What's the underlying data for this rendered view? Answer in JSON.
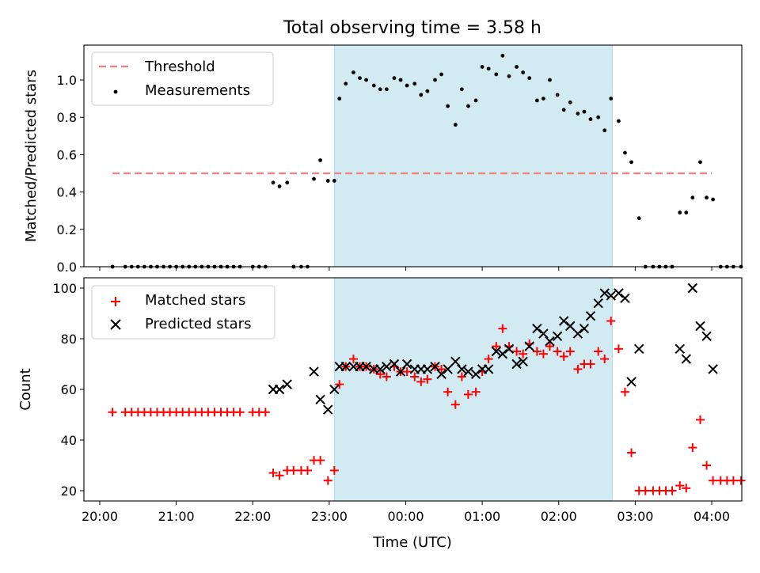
{
  "figure": {
    "title": "Total observing time = 3.58 h",
    "xlabel": "Time (UTC)"
  },
  "chart_data": [
    {
      "type": "scatter",
      "ylabel": "Matched/Predicted stars",
      "xlim": [
        "20:00",
        "04:00"
      ],
      "ylim": [
        0,
        1.15
      ],
      "x_ticks": [
        "20:00",
        "21:00",
        "22:00",
        "23:00",
        "00:00",
        "01:00",
        "02:00",
        "03:00",
        "04:00"
      ],
      "y_ticks": [
        "0.0",
        "0.2",
        "0.4",
        "0.6",
        "0.8",
        "1.0"
      ],
      "grid": false,
      "legend_position": "top-left",
      "highlight_span": {
        "start": "23:04",
        "end": "02:42",
        "color": "#add8e6"
      },
      "threshold": {
        "name": "Threshold",
        "value": 0.5,
        "x_start": "20:10",
        "x_end": "04:00",
        "color": "#f08080"
      },
      "series": [
        {
          "name": "Measurements",
          "color": "#000000",
          "points": [
            [
              "20:10",
              0
            ],
            [
              "20:20",
              0
            ],
            [
              "20:25",
              0
            ],
            [
              "20:30",
              0
            ],
            [
              "20:35",
              0
            ],
            [
              "20:40",
              0
            ],
            [
              "20:45",
              0
            ],
            [
              "20:50",
              0
            ],
            [
              "20:55",
              0
            ],
            [
              "21:00",
              0
            ],
            [
              "21:05",
              0
            ],
            [
              "21:10",
              0
            ],
            [
              "21:15",
              0
            ],
            [
              "21:20",
              0
            ],
            [
              "21:25",
              0
            ],
            [
              "21:30",
              0
            ],
            [
              "21:35",
              0
            ],
            [
              "21:40",
              0
            ],
            [
              "21:45",
              0
            ],
            [
              "21:50",
              0
            ],
            [
              "22:00",
              0
            ],
            [
              "22:05",
              0
            ],
            [
              "22:10",
              0
            ],
            [
              "22:16",
              0.45
            ],
            [
              "22:21",
              0.43
            ],
            [
              "22:27",
              0.45
            ],
            [
              "22:32",
              0
            ],
            [
              "22:38",
              0
            ],
            [
              "22:43",
              0
            ],
            [
              "22:48",
              0.47
            ],
            [
              "22:53",
              0.57
            ],
            [
              "22:59",
              0.46
            ],
            [
              "23:04",
              0.46
            ],
            [
              "23:08",
              0.9
            ],
            [
              "23:13",
              0.98
            ],
            [
              "23:19",
              1.04
            ],
            [
              "23:24",
              1.01
            ],
            [
              "23:29",
              1.0
            ],
            [
              "23:35",
              0.97
            ],
            [
              "23:40",
              0.95
            ],
            [
              "23:45",
              0.95
            ],
            [
              "23:51",
              1.01
            ],
            [
              "23:56",
              1.0
            ],
            [
              "00:01",
              0.97
            ],
            [
              "00:07",
              0.98
            ],
            [
              "00:12",
              0.92
            ],
            [
              "00:17",
              0.94
            ],
            [
              "00:23",
              1.0
            ],
            [
              "00:28",
              1.03
            ],
            [
              "00:33",
              0.86
            ],
            [
              "00:39",
              0.76
            ],
            [
              "00:44",
              0.95
            ],
            [
              "00:49",
              0.86
            ],
            [
              "00:55",
              0.89
            ],
            [
              "01:00",
              1.07
            ],
            [
              "01:05",
              1.06
            ],
            [
              "01:11",
              1.03
            ],
            [
              "01:16",
              1.13
            ],
            [
              "01:21",
              1.02
            ],
            [
              "01:27",
              1.07
            ],
            [
              "01:32",
              1.04
            ],
            [
              "01:37",
              1.01
            ],
            [
              "01:43",
              0.89
            ],
            [
              "01:48",
              0.9
            ],
            [
              "01:53",
              1.0
            ],
            [
              "01:59",
              0.92
            ],
            [
              "02:04",
              0.84
            ],
            [
              "02:09",
              0.88
            ],
            [
              "02:15",
              0.82
            ],
            [
              "02:20",
              0.83
            ],
            [
              "02:25",
              0.79
            ],
            [
              "02:31",
              0.8
            ],
            [
              "02:36",
              0.73
            ],
            [
              "02:41",
              0.9
            ],
            [
              "02:47",
              0.78
            ],
            [
              "02:52",
              0.61
            ],
            [
              "02:57",
              0.56
            ],
            [
              "03:03",
              0.26
            ],
            [
              "03:08",
              0
            ],
            [
              "03:14",
              0
            ],
            [
              "03:19",
              0
            ],
            [
              "03:24",
              0
            ],
            [
              "03:29",
              0
            ],
            [
              "03:35",
              0.29
            ],
            [
              "03:40",
              0.29
            ],
            [
              "03:45",
              0.37
            ],
            [
              "03:51",
              0.56
            ],
            [
              "03:56",
              0.37
            ],
            [
              "04:01",
              0.36
            ],
            [
              "04:07",
              0
            ],
            [
              "04:12",
              0
            ],
            [
              "04:17",
              0
            ],
            [
              "04:23",
              0
            ]
          ]
        }
      ]
    },
    {
      "type": "scatter",
      "ylabel": "Count",
      "xlim": [
        "20:00",
        "04:00"
      ],
      "ylim": [
        15,
        104
      ],
      "x_ticks": [
        "20:00",
        "21:00",
        "22:00",
        "23:00",
        "00:00",
        "01:00",
        "02:00",
        "03:00",
        "04:00"
      ],
      "y_ticks": [
        "20",
        "40",
        "60",
        "80",
        "100"
      ],
      "grid": false,
      "legend_position": "top-left",
      "highlight_span": {
        "start": "23:04",
        "end": "02:42",
        "color": "#add8e6"
      },
      "series": [
        {
          "name": "Matched stars",
          "marker": "plus",
          "color": "#ff0000",
          "points": [
            [
              "20:10",
              51
            ],
            [
              "20:20",
              51
            ],
            [
              "20:25",
              51
            ],
            [
              "20:30",
              51
            ],
            [
              "20:35",
              51
            ],
            [
              "20:40",
              51
            ],
            [
              "20:45",
              51
            ],
            [
              "20:50",
              51
            ],
            [
              "20:55",
              51
            ],
            [
              "21:00",
              51
            ],
            [
              "21:05",
              51
            ],
            [
              "21:10",
              51
            ],
            [
              "21:15",
              51
            ],
            [
              "21:20",
              51
            ],
            [
              "21:25",
              51
            ],
            [
              "21:30",
              51
            ],
            [
              "21:35",
              51
            ],
            [
              "21:40",
              51
            ],
            [
              "21:45",
              51
            ],
            [
              "21:50",
              51
            ],
            [
              "22:00",
              51
            ],
            [
              "22:05",
              51
            ],
            [
              "22:10",
              51
            ],
            [
              "22:16",
              27
            ],
            [
              "22:21",
              26
            ],
            [
              "22:27",
              28
            ],
            [
              "22:32",
              28
            ],
            [
              "22:38",
              28
            ],
            [
              "22:43",
              28
            ],
            [
              "22:48",
              32
            ],
            [
              "22:53",
              32
            ],
            [
              "22:59",
              24
            ],
            [
              "23:04",
              28
            ],
            [
              "23:08",
              62
            ],
            [
              "23:13",
              69
            ],
            [
              "23:19",
              72
            ],
            [
              "23:24",
              69
            ],
            [
              "23:29",
              69
            ],
            [
              "23:35",
              68
            ],
            [
              "23:40",
              66
            ],
            [
              "23:45",
              65
            ],
            [
              "23:51",
              69
            ],
            [
              "23:56",
              67
            ],
            [
              "00:01",
              67
            ],
            [
              "00:07",
              65
            ],
            [
              "00:12",
              63
            ],
            [
              "00:17",
              64
            ],
            [
              "00:23",
              69
            ],
            [
              "00:28",
              68
            ],
            [
              "00:33",
              59
            ],
            [
              "00:39",
              54
            ],
            [
              "00:44",
              65
            ],
            [
              "00:49",
              58
            ],
            [
              "00:55",
              59
            ],
            [
              "01:00",
              67
            ],
            [
              "01:05",
              72
            ],
            [
              "01:11",
              77
            ],
            [
              "01:16",
              84
            ],
            [
              "01:21",
              77
            ],
            [
              "01:27",
              75
            ],
            [
              "01:32",
              74
            ],
            [
              "01:37",
              78
            ],
            [
              "01:43",
              75
            ],
            [
              "01:48",
              74
            ],
            [
              "01:53",
              77
            ],
            [
              "01:59",
              75
            ],
            [
              "02:04",
              73
            ],
            [
              "02:09",
              75
            ],
            [
              "02:15",
              68
            ],
            [
              "02:20",
              70
            ],
            [
              "02:25",
              70
            ],
            [
              "02:31",
              75
            ],
            [
              "02:36",
              72
            ],
            [
              "02:41",
              87
            ],
            [
              "02:47",
              76
            ],
            [
              "02:52",
              59
            ],
            [
              "02:57",
              35
            ],
            [
              "03:03",
              20
            ],
            [
              "03:08",
              20
            ],
            [
              "03:14",
              20
            ],
            [
              "03:19",
              20
            ],
            [
              "03:24",
              20
            ],
            [
              "03:29",
              20
            ],
            [
              "03:35",
              22
            ],
            [
              "03:40",
              21
            ],
            [
              "03:45",
              37
            ],
            [
              "03:51",
              48
            ],
            [
              "03:56",
              30
            ],
            [
              "04:01",
              24
            ],
            [
              "04:07",
              24
            ],
            [
              "04:12",
              24
            ],
            [
              "04:17",
              24
            ],
            [
              "04:23",
              24
            ]
          ]
        },
        {
          "name": "Predicted stars",
          "marker": "cross",
          "color": "#000000",
          "points": [
            [
              "22:16",
              60
            ],
            [
              "22:21",
              60
            ],
            [
              "22:27",
              62
            ],
            [
              "22:48",
              67
            ],
            [
              "22:53",
              56
            ],
            [
              "22:59",
              52
            ],
            [
              "23:04",
              60
            ],
            [
              "23:08",
              69
            ],
            [
              "23:13",
              69
            ],
            [
              "23:19",
              69
            ],
            [
              "23:24",
              69
            ],
            [
              "23:29",
              69
            ],
            [
              "23:35",
              68
            ],
            [
              "23:40",
              68
            ],
            [
              "23:45",
              69
            ],
            [
              "23:51",
              70
            ],
            [
              "23:56",
              67
            ],
            [
              "00:01",
              70
            ],
            [
              "00:07",
              68
            ],
            [
              "00:12",
              68
            ],
            [
              "00:17",
              68
            ],
            [
              "00:23",
              69
            ],
            [
              "00:28",
              66
            ],
            [
              "00:33",
              68
            ],
            [
              "00:39",
              71
            ],
            [
              "00:44",
              68
            ],
            [
              "00:49",
              67
            ],
            [
              "00:55",
              66
            ],
            [
              "01:00",
              68
            ],
            [
              "01:05",
              68
            ],
            [
              "01:11",
              75
            ],
            [
              "01:16",
              74
            ],
            [
              "01:21",
              76
            ],
            [
              "01:27",
              70
            ],
            [
              "01:32",
              71
            ],
            [
              "01:37",
              77
            ],
            [
              "01:43",
              84
            ],
            [
              "01:48",
              82
            ],
            [
              "01:53",
              79
            ],
            [
              "01:59",
              81
            ],
            [
              "02:04",
              87
            ],
            [
              "02:09",
              85
            ],
            [
              "02:15",
              82
            ],
            [
              "02:20",
              84
            ],
            [
              "02:25",
              89
            ],
            [
              "02:31",
              94
            ],
            [
              "02:36",
              98
            ],
            [
              "02:41",
              97
            ],
            [
              "02:47",
              98
            ],
            [
              "02:52",
              96
            ],
            [
              "02:57",
              63
            ],
            [
              "03:03",
              76
            ],
            [
              "03:35",
              76
            ],
            [
              "03:40",
              72
            ],
            [
              "03:45",
              100
            ],
            [
              "03:51",
              85
            ],
            [
              "03:56",
              81
            ],
            [
              "04:01",
              68
            ]
          ]
        }
      ]
    }
  ]
}
